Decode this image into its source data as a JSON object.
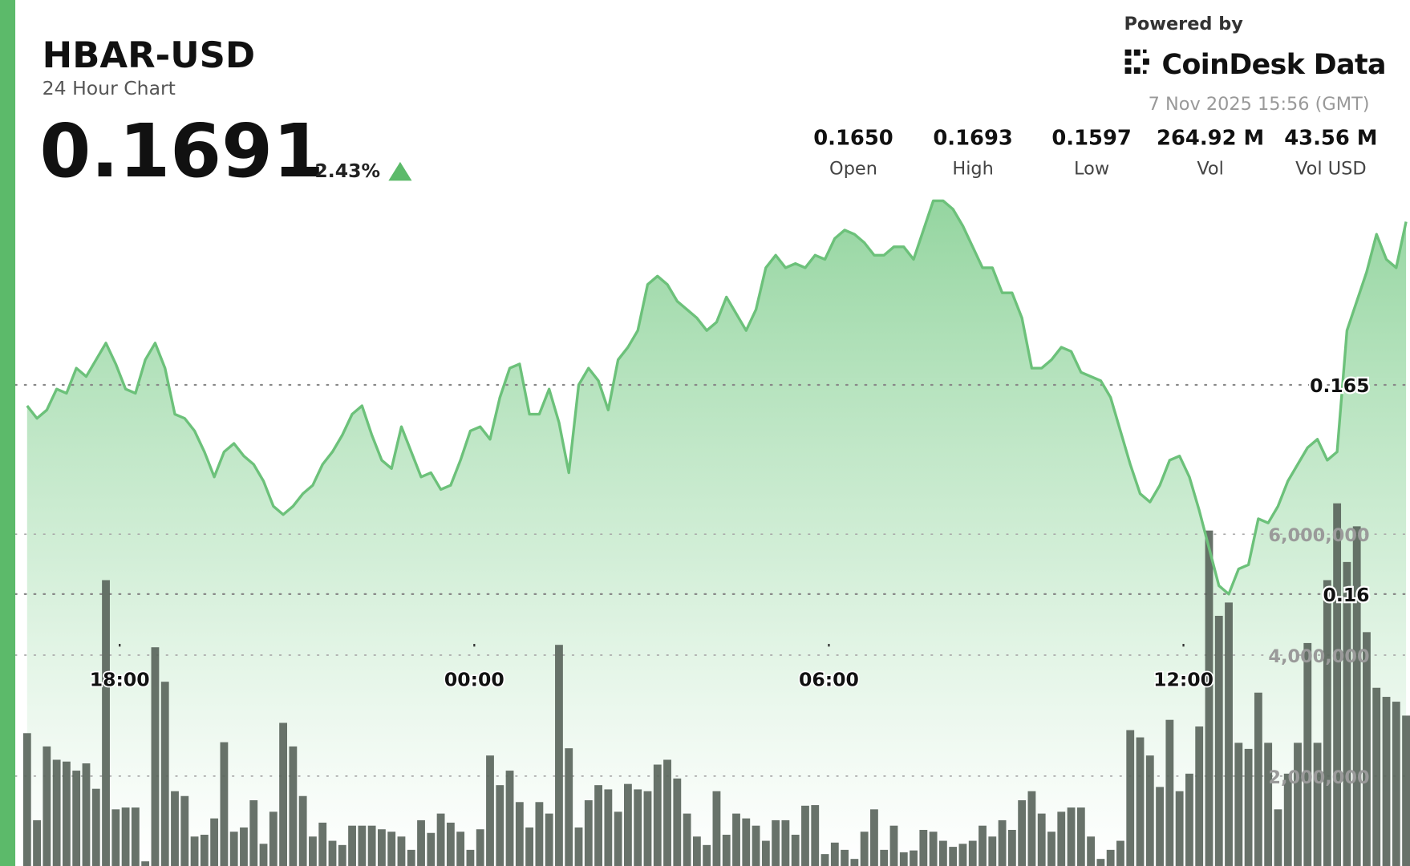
{
  "header": {
    "symbol": "HBAR-USD",
    "subtitle": "24 Hour Chart",
    "price": "0.1691",
    "change": "2.43%",
    "powered_by": "Powered by",
    "brand": "CoinDesk Data",
    "timestamp": "7 Nov 2025 15:56 (GMT)",
    "stats": [
      {
        "value": "0.1650",
        "label": "Open"
      },
      {
        "value": "0.1693",
        "label": "High"
      },
      {
        "value": "0.1597",
        "label": "Low"
      },
      {
        "value": "264.92 M",
        "label": "Vol"
      },
      {
        "value": "43.56 M",
        "label": "Vol USD"
      }
    ]
  },
  "chart_data": {
    "type": "area",
    "grid": true,
    "xlim": [
      974,
      2390
    ],
    "xticks": [
      {
        "value": 1080,
        "label": "18:00"
      },
      {
        "value": 1440,
        "label": "00:00"
      },
      {
        "value": 1800,
        "label": "06:00"
      },
      {
        "value": 2160,
        "label": "12:00"
      }
    ],
    "ylim": [
      0.1535,
      0.1742
    ],
    "yticks": [
      0.16,
      0.165
    ],
    "y2lim": [
      513000,
      14833000
    ],
    "y2ticks": [
      {
        "value": 2000000,
        "label": "2,000,000"
      },
      {
        "value": 4000000,
        "label": "4,000,000"
      },
      {
        "value": 6000000,
        "label": "6,000,000"
      }
    ],
    "x": [
      986,
      996,
      1006,
      1016,
      1026,
      1036,
      1046,
      1056,
      1066,
      1076,
      1086,
      1096,
      1106,
      1116,
      1126,
      1136,
      1146,
      1156,
      1166,
      1176,
      1186,
      1196,
      1206,
      1216,
      1226,
      1236,
      1246,
      1256,
      1266,
      1276,
      1286,
      1296,
      1306,
      1316,
      1326,
      1336,
      1346,
      1356,
      1366,
      1376,
      1386,
      1396,
      1406,
      1416,
      1426,
      1436,
      1446,
      1456,
      1466,
      1476,
      1486,
      1496,
      1506,
      1516,
      1526,
      1536,
      1546,
      1556,
      1566,
      1576,
      1586,
      1596,
      1606,
      1616,
      1626,
      1636,
      1646,
      1656,
      1666,
      1676,
      1686,
      1696,
      1706,
      1716,
      1726,
      1736,
      1746,
      1756,
      1766,
      1776,
      1786,
      1796,
      1806,
      1816,
      1826,
      1836,
      1846,
      1856,
      1866,
      1876,
      1886,
      1896,
      1906,
      1916,
      1926,
      1936,
      1946,
      1956,
      1966,
      1976,
      1986,
      1996,
      2006,
      2016,
      2026,
      2036,
      2046,
      2056,
      2066,
      2076,
      2086,
      2096,
      2106,
      2116,
      2126,
      2136,
      2146,
      2156,
      2166,
      2176,
      2186,
      2196,
      2206,
      2216,
      2226,
      2236,
      2246,
      2256,
      2266,
      2276,
      2286,
      2296,
      2306,
      2316,
      2326,
      2336,
      2346,
      2356,
      2366,
      2376,
      2386
    ],
    "series": [
      {
        "color": "#6cc17a",
        "values": [
          0.1645,
          0.1642,
          0.1644,
          0.1649,
          0.1648,
          0.1654,
          0.1652,
          0.1656,
          0.166,
          0.1655,
          0.1649,
          0.1648,
          0.1656,
          0.166,
          0.1654,
          0.1643,
          0.1642,
          0.1639,
          0.1634,
          0.1628,
          0.1634,
          0.1636,
          0.1633,
          0.1631,
          0.1627,
          0.1621,
          0.1619,
          0.1621,
          0.1624,
          0.1626,
          0.1631,
          0.1634,
          0.1638,
          0.1643,
          0.1645,
          0.1638,
          0.1632,
          0.163,
          0.164,
          0.1634,
          0.1628,
          0.1629,
          0.1625,
          0.1626,
          0.1632,
          0.1639,
          0.164,
          0.1637,
          0.1647,
          0.1654,
          0.1655,
          0.1643,
          0.1643,
          0.1649,
          0.1641,
          0.1629,
          0.165,
          0.1654,
          0.1651,
          0.1644,
          0.1656,
          0.1659,
          0.1663,
          0.1674,
          0.1676,
          0.1674,
          0.167,
          0.1668,
          0.1666,
          0.1663,
          0.1665,
          0.1671,
          0.1667,
          0.1663,
          0.1668,
          0.1678,
          0.1681,
          0.1678,
          0.1679,
          0.1678,
          0.1681,
          0.168,
          0.1685,
          0.1687,
          0.1686,
          0.1684,
          0.1681,
          0.1681,
          0.1683,
          0.1683,
          0.168,
          0.1687,
          0.1694,
          0.1694,
          0.1692,
          0.1688,
          0.1683,
          0.1678,
          0.1678,
          0.1672,
          0.1672,
          0.1666,
          0.1654,
          0.1654,
          0.1656,
          0.1659,
          0.1658,
          0.1653,
          0.1652,
          0.1651,
          0.1647,
          0.1639,
          0.1631,
          0.1624,
          0.1622,
          0.1626,
          0.1632,
          0.1633,
          0.1628,
          0.162,
          0.1611,
          0.1602,
          0.16,
          0.1606,
          0.1607,
          0.1618,
          0.1617,
          0.1621,
          0.1627,
          0.1631,
          0.1635,
          0.1637,
          0.1632,
          0.1634,
          0.1663,
          0.167,
          0.1677,
          0.1686,
          0.168,
          0.1678,
          0.1689
        ]
      },
      {
        "type": "bar",
        "axis": "y2",
        "color": "#58635a",
        "values": [
          2710000,
          1270000,
          2490000,
          2270000,
          2240000,
          2090000,
          2210000,
          1790000,
          5240000,
          1450000,
          1480000,
          1480000,
          590000,
          4130000,
          3560000,
          1750000,
          1670000,
          1000000,
          1030000,
          1300000,
          2560000,
          1080000,
          1150000,
          1600000,
          880000,
          1410000,
          2880000,
          2490000,
          1670000,
          1000000,
          1230000,
          930000,
          860000,
          1180000,
          1180000,
          1180000,
          1120000,
          1080000,
          1000000,
          780000,
          1270000,
          1060000,
          1380000,
          1230000,
          1080000,
          780000,
          1120000,
          2340000,
          1850000,
          2090000,
          1570000,
          1150000,
          1570000,
          1380000,
          4170000,
          2460000,
          1150000,
          1600000,
          1850000,
          1780000,
          1410000,
          1870000,
          1780000,
          1750000,
          2190000,
          2270000,
          1960000,
          1380000,
          1000000,
          860000,
          1750000,
          1030000,
          1380000,
          1300000,
          1180000,
          930000,
          1270000,
          1270000,
          1030000,
          1510000,
          1520000,
          710000,
          900000,
          780000,
          630000,
          1080000,
          1450000,
          780000,
          1180000,
          740000,
          770000,
          1110000,
          1080000,
          930000,
          830000,
          880000,
          930000,
          1180000,
          1000000,
          1270000,
          1110000,
          1600000,
          1750000,
          1380000,
          1080000,
          1410000,
          1480000,
          1480000,
          1000000,
          630000,
          780000,
          930000,
          2760000,
          2640000,
          2340000,
          1820000,
          2930000,
          1750000,
          2040000,
          2820000,
          6060000,
          4650000,
          4870000,
          2550000,
          2450000,
          3380000,
          2550000,
          1450000,
          2040000,
          2550000,
          4200000,
          2550000,
          5240000,
          6510000,
          5540000,
          6130000,
          4380000,
          3460000,
          3310000,
          3230000,
          3000000
        ]
      }
    ]
  }
}
